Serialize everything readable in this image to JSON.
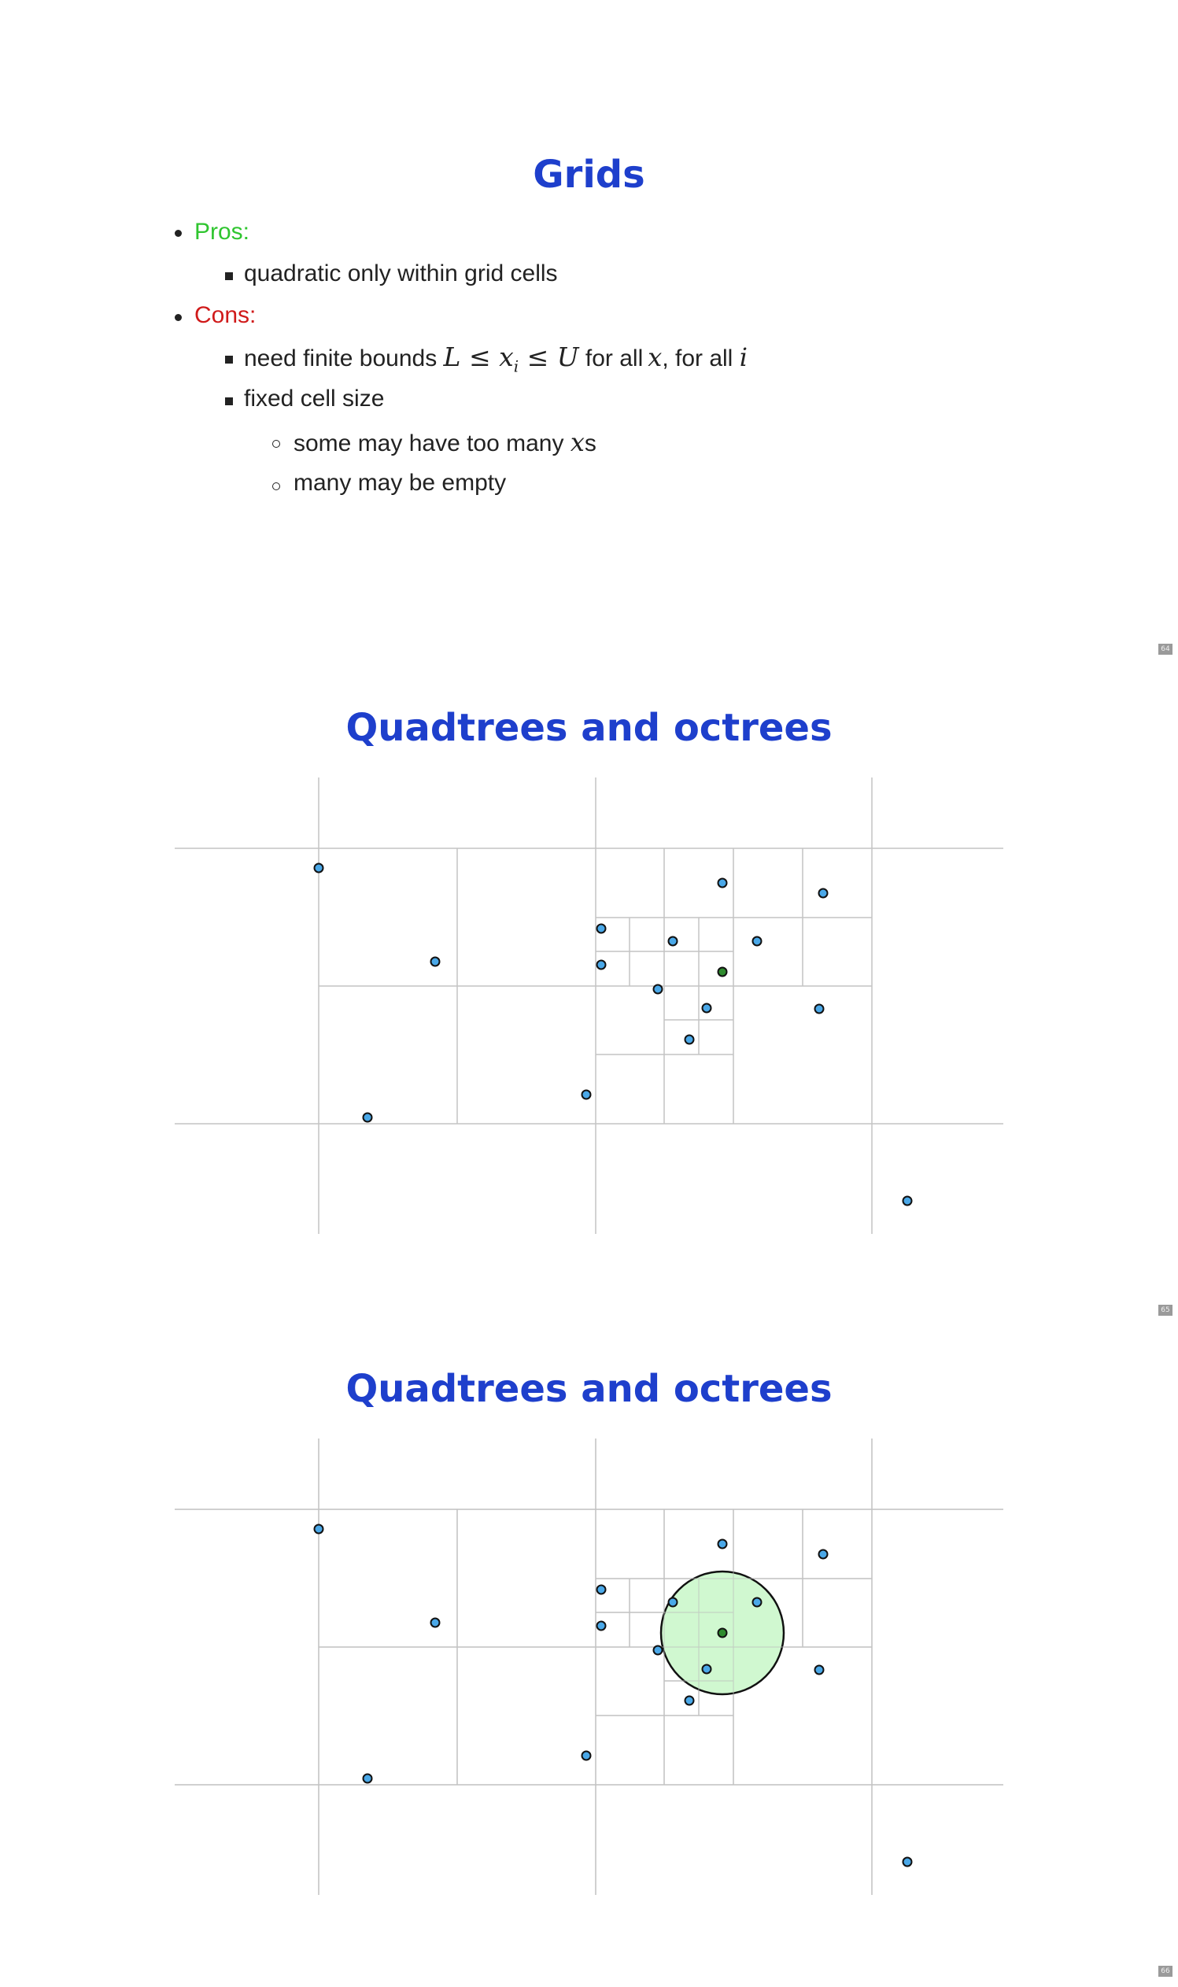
{
  "slides": [
    {
      "title": "Grids",
      "page_number": "64",
      "pros_label": "Pros:",
      "pros_item": "quadratic only within grid cells",
      "cons_label": "Cons:",
      "cons_item1_prefix": "need finite bounds",
      "cons_item1_math1": "L ≤ x",
      "cons_item1_math1_sub": "i",
      "cons_item1_math1_end": " ≤ U",
      "cons_item1_mid": "for all",
      "cons_item1_math2": "x",
      "cons_item1_mid2": ", for all",
      "cons_item1_math3": "i",
      "cons_item2": "fixed cell size",
      "cons_sub1_prefix": "some may have too many",
      "cons_sub1_math": "x",
      "cons_sub1_suffix": "s",
      "cons_sub2": "many may be empty"
    },
    {
      "title": "Quadtrees and octrees",
      "page_number": "65"
    },
    {
      "title": "Quadtrees and octrees",
      "page_number": "66"
    }
  ],
  "colors": {
    "title": "#1e3fcc",
    "pros": "#2fc52f",
    "cons": "#d01a1a",
    "point_fill": "#4aa8e8",
    "query_point_fill": "#2e8b2e",
    "query_circle_fill": "#c8f7c8",
    "grid_line": "#c4c4c4"
  },
  "icons": {
    "bullet_level1": "filled-dot",
    "bullet_level2": "filled-square",
    "bullet_level3": "hollow-circle"
  }
}
